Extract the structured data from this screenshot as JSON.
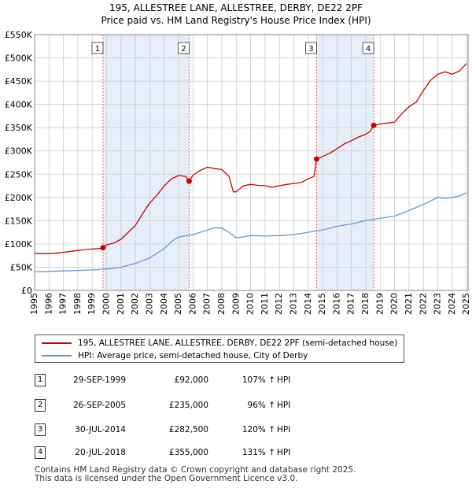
{
  "title_line1": "195, ALLESTREE LANE, ALLESTREE, DERBY, DE22 2PF",
  "title_line2": "Price paid vs. HM Land Registry's House Price Index (HPI)",
  "colors": {
    "property": "#cc0000",
    "hpi": "#6699cc",
    "shade": "#e6eefa",
    "marker_line": "#dd6666"
  },
  "chart_data": {
    "type": "line",
    "title": "195, ALLESTREE LANE, ALLESTREE, DERBY, DE22 2PF",
    "ylabel": "",
    "xlabel": "",
    "xlim": [
      1995,
      2025.1
    ],
    "ylim": [
      0,
      550000
    ],
    "y_ticks": [
      0,
      50000,
      100000,
      150000,
      200000,
      250000,
      300000,
      350000,
      400000,
      450000,
      500000,
      550000
    ],
    "y_tick_labels": [
      "£0",
      "£50K",
      "£100K",
      "£150K",
      "£200K",
      "£250K",
      "£300K",
      "£350K",
      "£400K",
      "£450K",
      "£500K",
      "£550K"
    ],
    "x_ticks": [
      1995,
      1996,
      1997,
      1998,
      1999,
      2000,
      2001,
      2002,
      2003,
      2004,
      2005,
      2006,
      2007,
      2008,
      2009,
      2010,
      2011,
      2012,
      2013,
      2014,
      2015,
      2016,
      2017,
      2018,
      2019,
      2020,
      2021,
      2022,
      2023,
      2024,
      2025
    ],
    "grid": true,
    "shaded_periods": [
      [
        1999.75,
        2005.73
      ],
      [
        2014.58,
        2018.55
      ]
    ],
    "series": [
      {
        "name": "195, ALLESTREE LANE, ALLESTREE, DERBY, DE22 2PF (semi-detached house)",
        "x": [
          1995,
          1995.5,
          1996,
          1996.5,
          1997,
          1997.5,
          1998,
          1998.5,
          1999,
          1999.5,
          1999.75,
          2000,
          2000.5,
          2001,
          2001.5,
          2002,
          2002.5,
          2003,
          2003.5,
          2004,
          2004.5,
          2005,
          2005.5,
          2005.73,
          2006,
          2006.5,
          2007,
          2007.5,
          2008,
          2008.5,
          2008.8,
          2009,
          2009.5,
          2010,
          2010.5,
          2011,
          2011.5,
          2012,
          2012.5,
          2013,
          2013.5,
          2014,
          2014.4,
          2014.58,
          2015,
          2015.5,
          2016,
          2016.5,
          2017,
          2017.5,
          2018,
          2018.3,
          2018.55,
          2019,
          2019.5,
          2020,
          2020.5,
          2021,
          2021.5,
          2022,
          2022.5,
          2023,
          2023.5,
          2024,
          2024.5,
          2025
        ],
        "y": [
          80000,
          79000,
          79000,
          80000,
          82000,
          84000,
          86000,
          88000,
          89000,
          90000,
          92000,
          98000,
          102000,
          110000,
          125000,
          140000,
          165000,
          188000,
          205000,
          225000,
          240000,
          247000,
          245000,
          235000,
          248000,
          258000,
          265000,
          262000,
          260000,
          245000,
          212000,
          212000,
          225000,
          228000,
          226000,
          225000,
          222000,
          225000,
          228000,
          230000,
          232000,
          240000,
          245000,
          282500,
          288000,
          295000,
          305000,
          315000,
          322000,
          330000,
          336000,
          342000,
          355000,
          358000,
          360000,
          362000,
          380000,
          395000,
          405000,
          430000,
          452000,
          465000,
          470000,
          465000,
          472000,
          488000
        ]
      },
      {
        "name": "HPI: Average price, semi-detached house, City of Derby",
        "x": [
          1995,
          1996,
          1997,
          1998,
          1999,
          2000,
          2001,
          2002,
          2003,
          2004,
          2004.5,
          2005,
          2006,
          2007,
          2007.5,
          2008,
          2008.5,
          2009,
          2009.5,
          2010,
          2011,
          2012,
          2013,
          2014,
          2015,
          2016,
          2017,
          2018,
          2019,
          2020,
          2021,
          2022,
          2023,
          2023.5,
          2024,
          2024.5,
          2025
        ],
        "y": [
          40000,
          41000,
          42000,
          43000,
          44000,
          46000,
          50000,
          58000,
          70000,
          90000,
          105000,
          115000,
          120000,
          130000,
          135000,
          134000,
          125000,
          113000,
          115000,
          118000,
          117000,
          118000,
          120000,
          125000,
          130000,
          138000,
          143000,
          150000,
          155000,
          160000,
          172000,
          185000,
          200000,
          198000,
          200000,
          203000,
          210000
        ]
      }
    ],
    "transactions": [
      {
        "num": "1",
        "x": 1999.75,
        "date": "29-SEP-1999",
        "price": 92000,
        "price_label": "£92,000",
        "pct": "107% ↑ HPI"
      },
      {
        "num": "2",
        "x": 2005.73,
        "date": "26-SEP-2005",
        "price": 235000,
        "price_label": "£235,000",
        "pct": "96% ↑ HPI"
      },
      {
        "num": "3",
        "x": 2014.58,
        "date": "30-JUL-2014",
        "price": 282500,
        "price_label": "£282,500",
        "pct": "120% ↑ HPI"
      },
      {
        "num": "4",
        "x": 2018.55,
        "date": "20-JUL-2018",
        "price": 355000,
        "price_label": "£355,000",
        "pct": "131% ↑ HPI"
      }
    ]
  },
  "legend": {
    "property_label": "195, ALLESTREE LANE, ALLESTREE, DERBY, DE22 2PF (semi-detached house)",
    "hpi_label": "HPI: Average price, semi-detached house, City of Derby"
  },
  "table": {
    "rows": [
      {
        "num": "1",
        "date": "29-SEP-1999",
        "price": "£92,000",
        "pct": "107% ↑",
        "hpi": "HPI"
      },
      {
        "num": "2",
        "date": "26-SEP-2005",
        "price": "£235,000",
        "pct": "96% ↑",
        "hpi": "HPI"
      },
      {
        "num": "3",
        "date": "30-JUL-2014",
        "price": "£282,500",
        "pct": "120% ↑",
        "hpi": "HPI"
      },
      {
        "num": "4",
        "date": "20-JUL-2018",
        "price": "£355,000",
        "pct": "131% ↑",
        "hpi": "HPI"
      }
    ]
  },
  "footer": {
    "line1": "Contains HM Land Registry data © Crown copyright and database right 2025.",
    "line2": "This data is licensed under the Open Government Licence v3.0."
  }
}
